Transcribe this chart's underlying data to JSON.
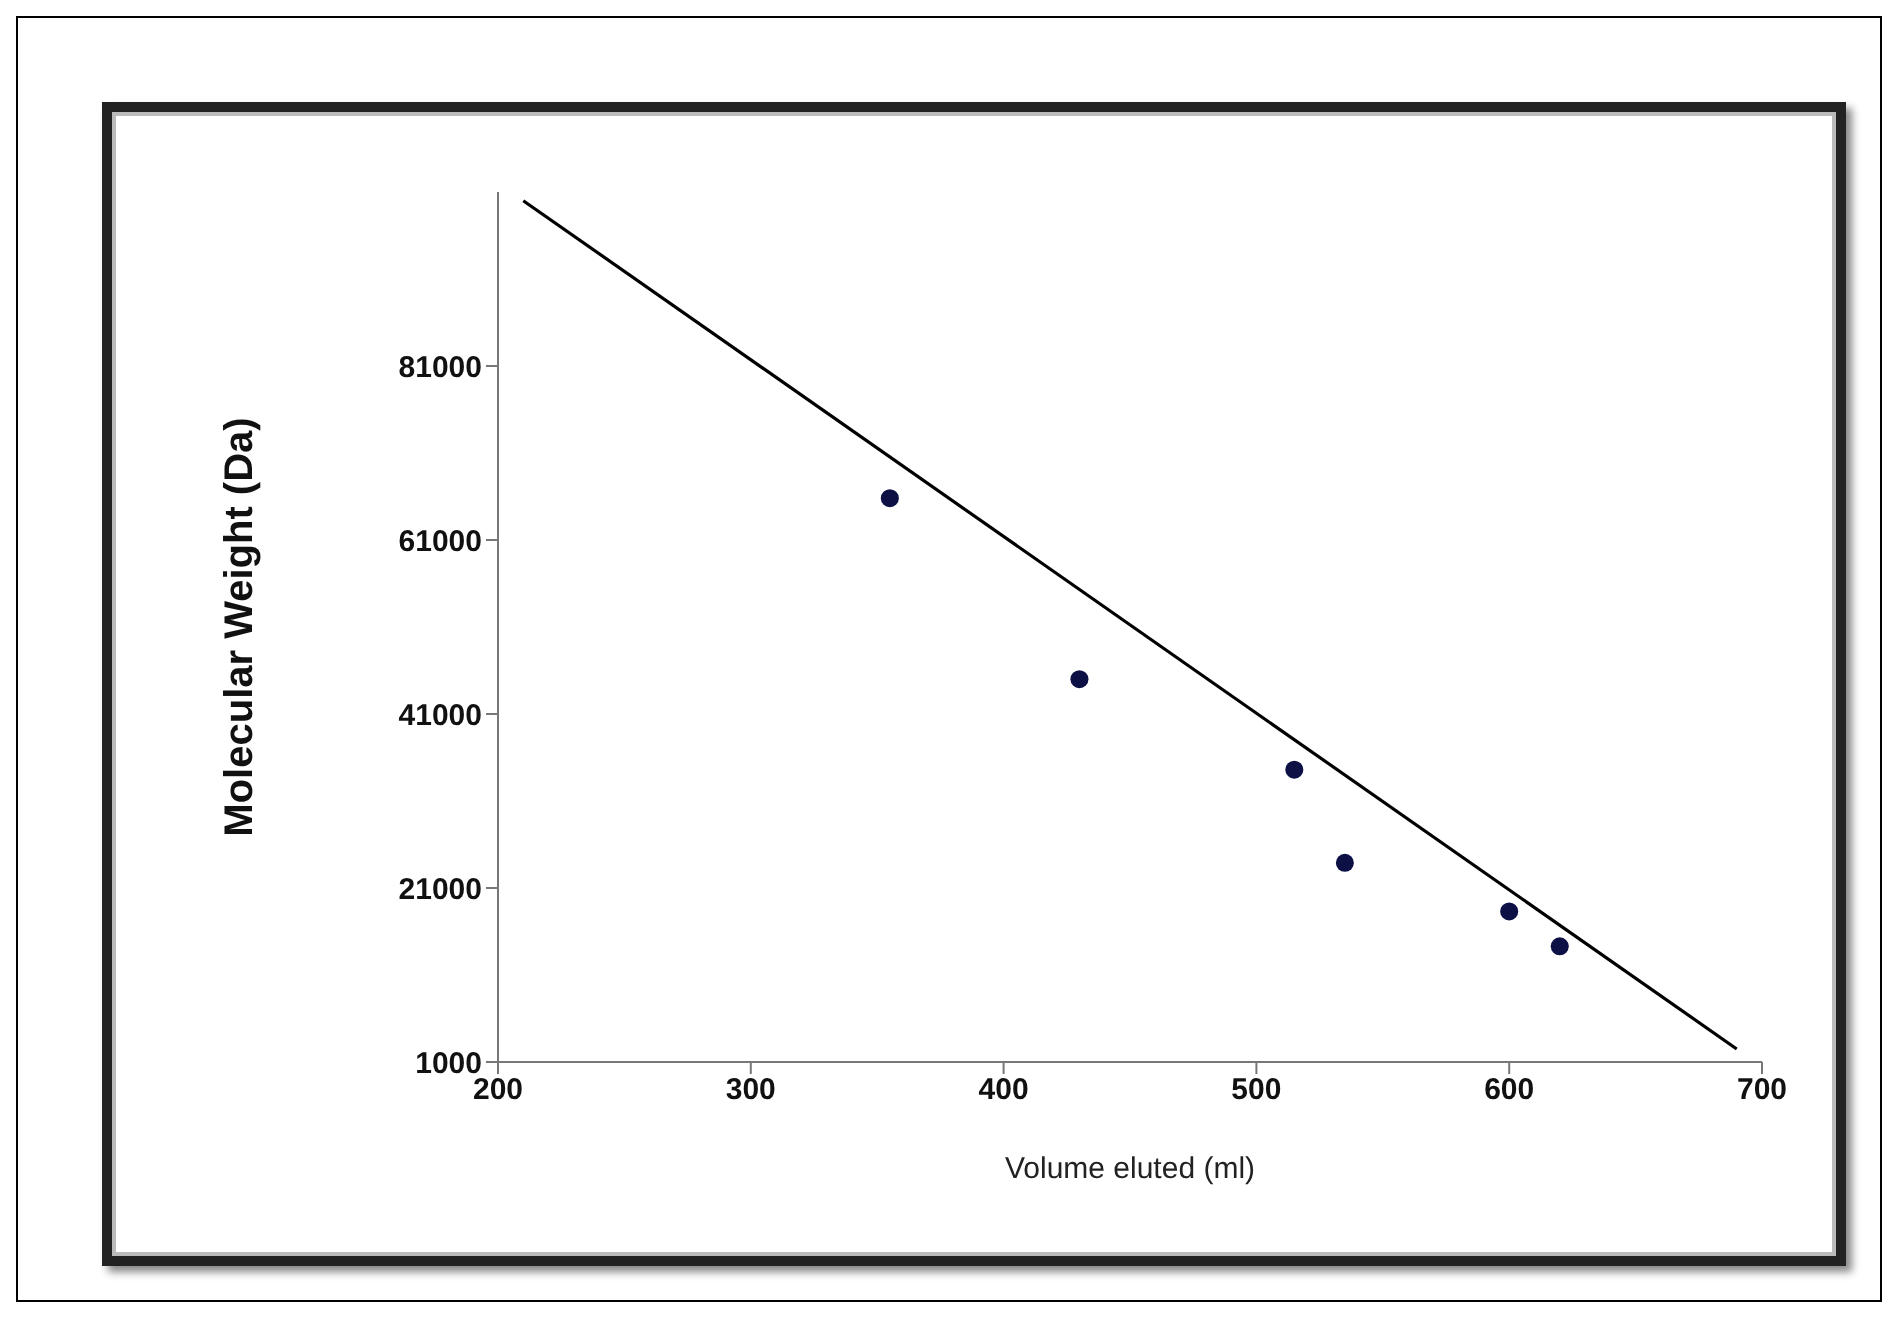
{
  "chart_data": {
    "type": "scatter",
    "xlabel": "Volume eluted (ml)",
    "ylabel": "Molecular Weight (Da)",
    "xlim": [
      200,
      700
    ],
    "xticks": [
      200,
      300,
      400,
      500,
      600,
      700
    ],
    "ylim": [
      1000,
      101000
    ],
    "yticks": [
      1000,
      21000,
      41000,
      61000,
      81000
    ],
    "grid": false,
    "legend": false,
    "series": [
      {
        "color": "#0d1045",
        "marker": "circle",
        "x": [
          355,
          430,
          515,
          535,
          600,
          620
        ],
        "values": [
          65800,
          45000,
          34600,
          23900,
          18300,
          14300
        ]
      },
      {
        "type": "line",
        "color": "#000000",
        "marker": "none",
        "line_style": "solid",
        "x": [
          210,
          690
        ],
        "values": [
          100000,
          2500
        ]
      }
    ]
  }
}
